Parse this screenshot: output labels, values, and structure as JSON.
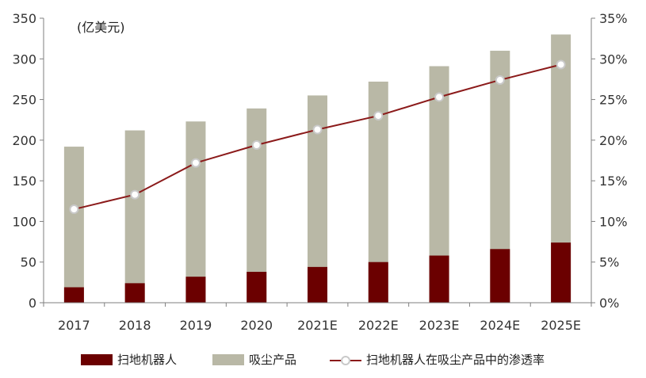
{
  "chart_data": {
    "type": "bar",
    "categories": [
      "2017",
      "2018",
      "2019",
      "2020",
      "2021E",
      "2022E",
      "2023E",
      "2024E",
      "2025E"
    ],
    "unit_label": "(亿美元)",
    "series": [
      {
        "name": "扫地机器人",
        "kind": "bar",
        "axis": "left",
        "color": "#6b0000",
        "values": [
          19,
          24,
          32,
          38,
          44,
          50,
          58,
          66,
          74
        ]
      },
      {
        "name": "吸尘产品",
        "kind": "bar",
        "axis": "left",
        "color": "#b9b8a6",
        "values": [
          192,
          212,
          223,
          239,
          255,
          272,
          291,
          310,
          330
        ]
      },
      {
        "name": "扫地机器人在吸尘产品中的渗透率",
        "kind": "line",
        "axis": "right",
        "color": "#8b1a1a",
        "values": [
          0.115,
          0.133,
          0.172,
          0.194,
          0.213,
          0.23,
          0.253,
          0.274,
          0.293
        ]
      }
    ],
    "y_left": {
      "range": [
        0,
        350
      ],
      "ticks": [
        "0",
        "50",
        "100",
        "150",
        "200",
        "250",
        "300",
        "350"
      ]
    },
    "y_right": {
      "range": [
        0,
        0.35
      ],
      "ticks": [
        "0%",
        "5%",
        "10%",
        "15%",
        "20%",
        "25%",
        "30%",
        "35%"
      ]
    },
    "grid": false,
    "legend_position": "bottom"
  }
}
